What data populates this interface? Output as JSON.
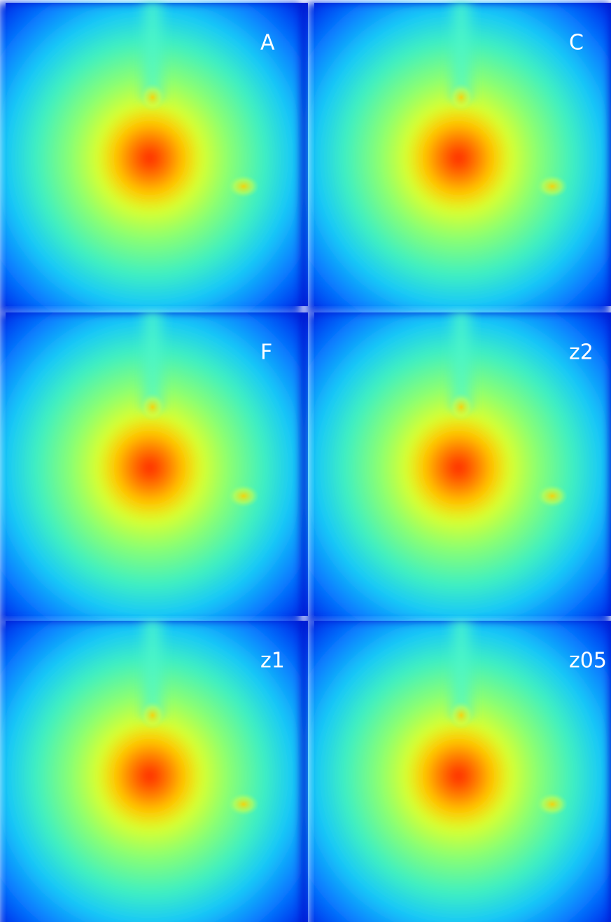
{
  "panels": [
    {
      "label": "A"
    },
    {
      "label": "C"
    },
    {
      "label": "F"
    },
    {
      "label": "z2"
    },
    {
      "label": "z1"
    },
    {
      "label": "z05"
    }
  ]
}
